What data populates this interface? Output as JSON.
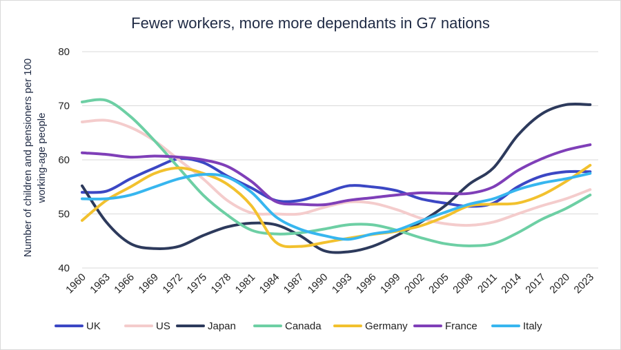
{
  "chart_data": {
    "type": "line",
    "title": "Fewer workers, more more dependants in G7 nations",
    "xlabel": "",
    "ylabel": "Number of children and pensioners per 100 working-age people",
    "ylim": [
      40,
      80
    ],
    "yticks": [
      40,
      50,
      60,
      70,
      80
    ],
    "xlim": [
      1960,
      2024
    ],
    "xticks": [
      1960,
      1963,
      1966,
      1969,
      1972,
      1975,
      1978,
      1981,
      1984,
      1987,
      1990,
      1993,
      1996,
      1999,
      2002,
      2005,
      2008,
      2011,
      2014,
      2017,
      2020,
      2023
    ],
    "grid": true,
    "legend_position": "bottom",
    "x": [
      1960,
      1963,
      1966,
      1969,
      1972,
      1975,
      1978,
      1981,
      1984,
      1987,
      1990,
      1993,
      1996,
      1999,
      2002,
      2005,
      2008,
      2011,
      2014,
      2017,
      2020,
      2023
    ],
    "series": [
      {
        "name": "UK",
        "color": "#3b47c4",
        "values": [
          54.0,
          54.2,
          56.5,
          58.5,
          60.2,
          59.5,
          57.0,
          54.8,
          52.5,
          52.5,
          53.8,
          55.2,
          55.0,
          54.3,
          52.8,
          52.0,
          51.4,
          52.0,
          55.0,
          57.0,
          57.8,
          57.8
        ]
      },
      {
        "name": "US",
        "color": "#f4cccc",
        "values": [
          67.0,
          67.3,
          66.0,
          63.5,
          60.0,
          56.5,
          52.5,
          50.2,
          50.0,
          50.0,
          51.2,
          52.2,
          52.0,
          50.8,
          49.2,
          48.2,
          47.9,
          48.5,
          50.0,
          51.5,
          52.8,
          54.5
        ]
      },
      {
        "name": "Japan",
        "color": "#2d3a5c",
        "values": [
          55.2,
          48.5,
          44.5,
          43.6,
          44.0,
          46.0,
          47.6,
          48.3,
          48.0,
          46.0,
          43.2,
          43.0,
          44.0,
          46.0,
          48.5,
          51.5,
          55.5,
          58.5,
          64.5,
          68.5,
          70.2,
          70.2
        ]
      },
      {
        "name": "Canada",
        "color": "#6dcfa4",
        "values": [
          70.7,
          71.0,
          68.0,
          63.5,
          58.5,
          53.5,
          49.8,
          47.0,
          46.3,
          46.5,
          47.2,
          48.0,
          48.0,
          47.0,
          45.6,
          44.5,
          44.1,
          44.5,
          46.5,
          49.0,
          51.0,
          53.5
        ]
      },
      {
        "name": "Germany",
        "color": "#f2c12e",
        "values": [
          48.8,
          52.5,
          55.0,
          57.5,
          58.5,
          57.5,
          55.5,
          51.5,
          44.8,
          44.0,
          44.7,
          45.5,
          46.2,
          46.8,
          47.8,
          49.5,
          51.5,
          51.8,
          52.0,
          53.5,
          56.0,
          59.0
        ]
      },
      {
        "name": "France",
        "color": "#7f3fb8",
        "values": [
          61.3,
          61.0,
          60.5,
          60.7,
          60.5,
          60.0,
          58.8,
          56.0,
          52.3,
          51.8,
          51.7,
          52.5,
          53.0,
          53.5,
          53.9,
          53.8,
          53.8,
          55.0,
          58.0,
          60.2,
          61.8,
          62.8
        ]
      },
      {
        "name": "Italy",
        "color": "#37b6ef",
        "values": [
          52.8,
          52.8,
          53.5,
          55.0,
          56.5,
          57.3,
          56.8,
          54.0,
          49.5,
          47.2,
          46.0,
          45.3,
          46.3,
          47.0,
          48.7,
          50.3,
          51.8,
          52.8,
          54.5,
          55.7,
          56.5,
          57.5
        ]
      }
    ]
  }
}
